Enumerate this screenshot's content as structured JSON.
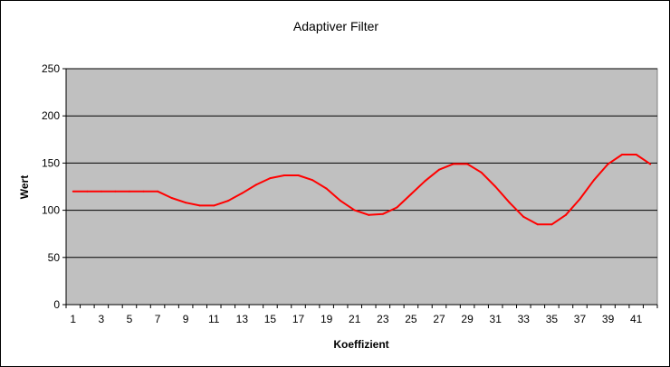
{
  "chart_data": {
    "type": "line",
    "title": "Adaptiver Filter",
    "xlabel": "Koeffizient",
    "ylabel": "Wert",
    "ylim": [
      0,
      250
    ],
    "yticks": [
      0,
      50,
      100,
      150,
      200,
      250
    ],
    "xticks": [
      1,
      3,
      5,
      7,
      9,
      11,
      13,
      15,
      17,
      19,
      21,
      23,
      25,
      27,
      29,
      31,
      33,
      35,
      37,
      39,
      41
    ],
    "x": [
      1,
      2,
      3,
      4,
      5,
      6,
      7,
      8,
      9,
      10,
      11,
      12,
      13,
      14,
      15,
      16,
      17,
      18,
      19,
      20,
      21,
      22,
      23,
      24,
      25,
      26,
      27,
      28,
      29,
      30,
      31,
      32,
      33,
      34,
      35,
      36,
      37,
      38,
      39,
      40,
      41,
      42
    ],
    "series": [
      {
        "values": [
          120,
          120,
          120,
          120,
          120,
          120,
          120,
          113,
          108,
          105,
          105,
          110,
          118,
          127,
          134,
          137,
          137,
          132,
          123,
          110,
          100,
          95,
          96,
          103,
          117,
          131,
          143,
          149,
          149,
          140,
          125,
          108,
          93,
          85,
          85,
          95,
          112,
          132,
          149,
          159,
          159,
          149
        ]
      }
    ],
    "grid": true,
    "legend": "none",
    "colors": {
      "plot_background": "#c0c0c0",
      "line": "#ff0000",
      "gridline": "#000000"
    }
  }
}
